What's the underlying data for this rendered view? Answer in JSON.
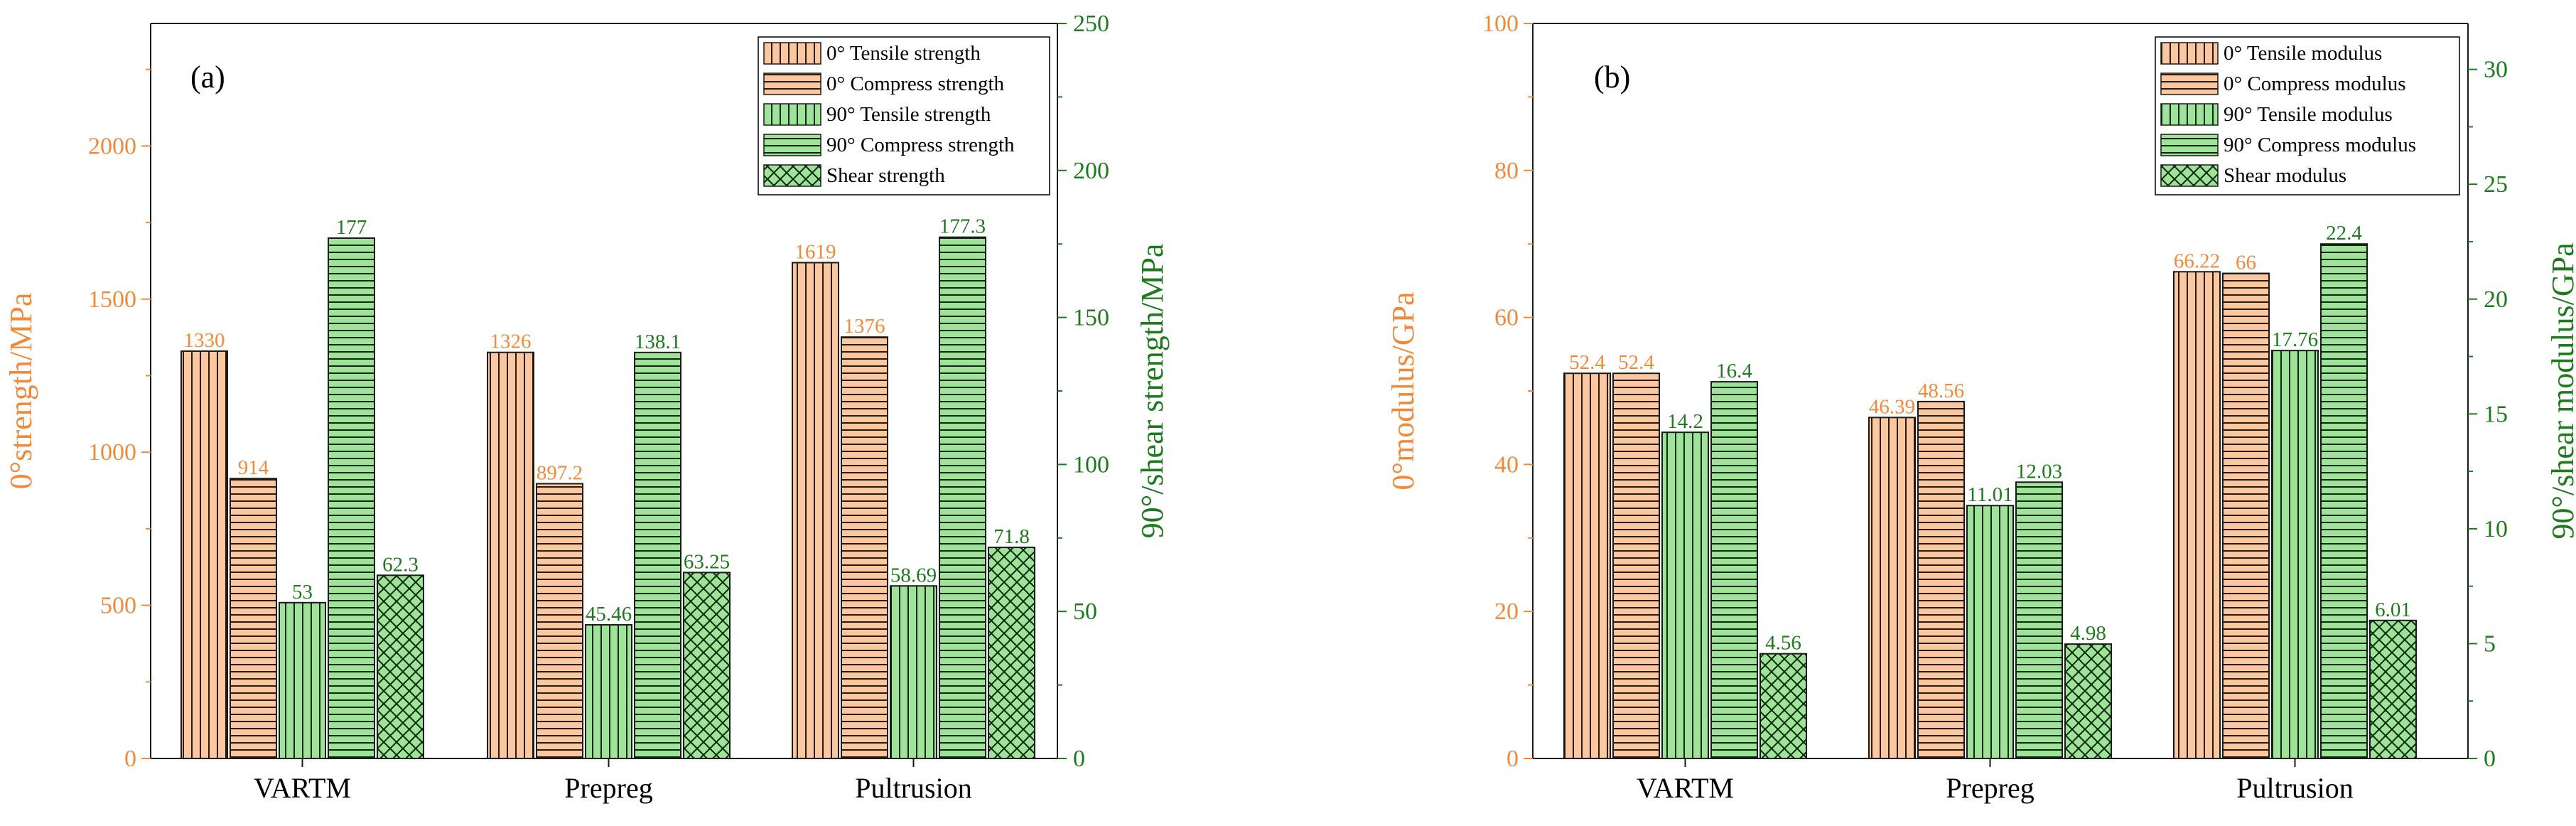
{
  "colors": {
    "orange": "#f08a3a",
    "orange_fill": "#fbc7a0",
    "green": "#1d7a1d",
    "green_fill": "#9fe29a",
    "axis": "#1a1a1a"
  },
  "chart_data": [
    {
      "type": "bar",
      "panel_label": "(a)",
      "categories": [
        "VARTM",
        "Prepreg",
        "Pultrusion"
      ],
      "ylabel": "0°strength/MPa",
      "ylabel_right": "90°/shear strength/MPa",
      "ylim": [
        0,
        2400
      ],
      "ylim_right": [
        0,
        250
      ],
      "yticks": [
        "0",
        "500",
        "1000",
        "1500",
        "2000"
      ],
      "yticks_right": [
        "0",
        "50",
        "100",
        "150",
        "200",
        "250"
      ],
      "series": [
        {
          "name": "0° Tensile strength",
          "axis": "left",
          "pattern": "vlines",
          "color": "orange",
          "values": [
            1330,
            1326,
            1619
          ],
          "labels": [
            "1330",
            "1326",
            "1619"
          ]
        },
        {
          "name": "0° Compress strength",
          "axis": "left",
          "pattern": "hlines",
          "color": "orange",
          "values": [
            914,
            897.2,
            1376
          ],
          "labels": [
            "914",
            "897.2",
            "1376"
          ]
        },
        {
          "name": "90° Tensile strength",
          "axis": "right",
          "pattern": "vlines",
          "color": "green",
          "values": [
            53,
            45.46,
            58.69
          ],
          "labels": [
            "53",
            "45.46",
            "58.69"
          ]
        },
        {
          "name": "90° Compress strength",
          "axis": "right",
          "pattern": "hlines",
          "color": "green",
          "values": [
            177,
            138.1,
            177.3
          ],
          "labels": [
            "177",
            "138.1",
            "177.3"
          ]
        },
        {
          "name": "Shear strength",
          "axis": "right",
          "pattern": "cross",
          "color": "green",
          "values": [
            62.3,
            63.25,
            71.8
          ],
          "labels": [
            "62.3",
            "63.25",
            "71.8"
          ]
        }
      ]
    },
    {
      "type": "bar",
      "panel_label": "(b)",
      "categories": [
        "VARTM",
        "Prepreg",
        "Pultrusion"
      ],
      "ylabel": "0°modulus/GPa",
      "ylabel_right": "90°/shear modulus/GPa",
      "ylim": [
        0,
        100
      ],
      "ylim_right": [
        0,
        32
      ],
      "yticks": [
        "0",
        "20",
        "40",
        "60",
        "80",
        "100"
      ],
      "yticks_right": [
        "0",
        "5",
        "10",
        "15",
        "20",
        "25",
        "30"
      ],
      "series": [
        {
          "name": "0° Tensile modulus",
          "axis": "left",
          "pattern": "vlines",
          "color": "orange",
          "values": [
            52.4,
            46.39,
            66.22
          ],
          "labels": [
            "52.4",
            "46.39",
            "66.22"
          ]
        },
        {
          "name": "0° Compress modulus",
          "axis": "left",
          "pattern": "hlines",
          "color": "orange",
          "values": [
            52.4,
            48.56,
            66
          ],
          "labels": [
            "52.4",
            "48.56",
            "66"
          ]
        },
        {
          "name": "90° Tensile modulus",
          "axis": "right",
          "pattern": "vlines",
          "color": "green",
          "values": [
            14.2,
            11.01,
            17.76
          ],
          "labels": [
            "14.2",
            "11.01",
            "17.76"
          ]
        },
        {
          "name": "90° Compress modulus",
          "axis": "right",
          "pattern": "hlines",
          "color": "green",
          "values": [
            16.4,
            12.03,
            22.4
          ],
          "labels": [
            "16.4",
            "12.03",
            "22.4"
          ]
        },
        {
          "name": "Shear modulus",
          "axis": "right",
          "pattern": "cross",
          "color": "green",
          "values": [
            4.56,
            4.98,
            6.01
          ],
          "labels": [
            "4.56",
            "4.98",
            "6.01"
          ]
        }
      ]
    }
  ]
}
